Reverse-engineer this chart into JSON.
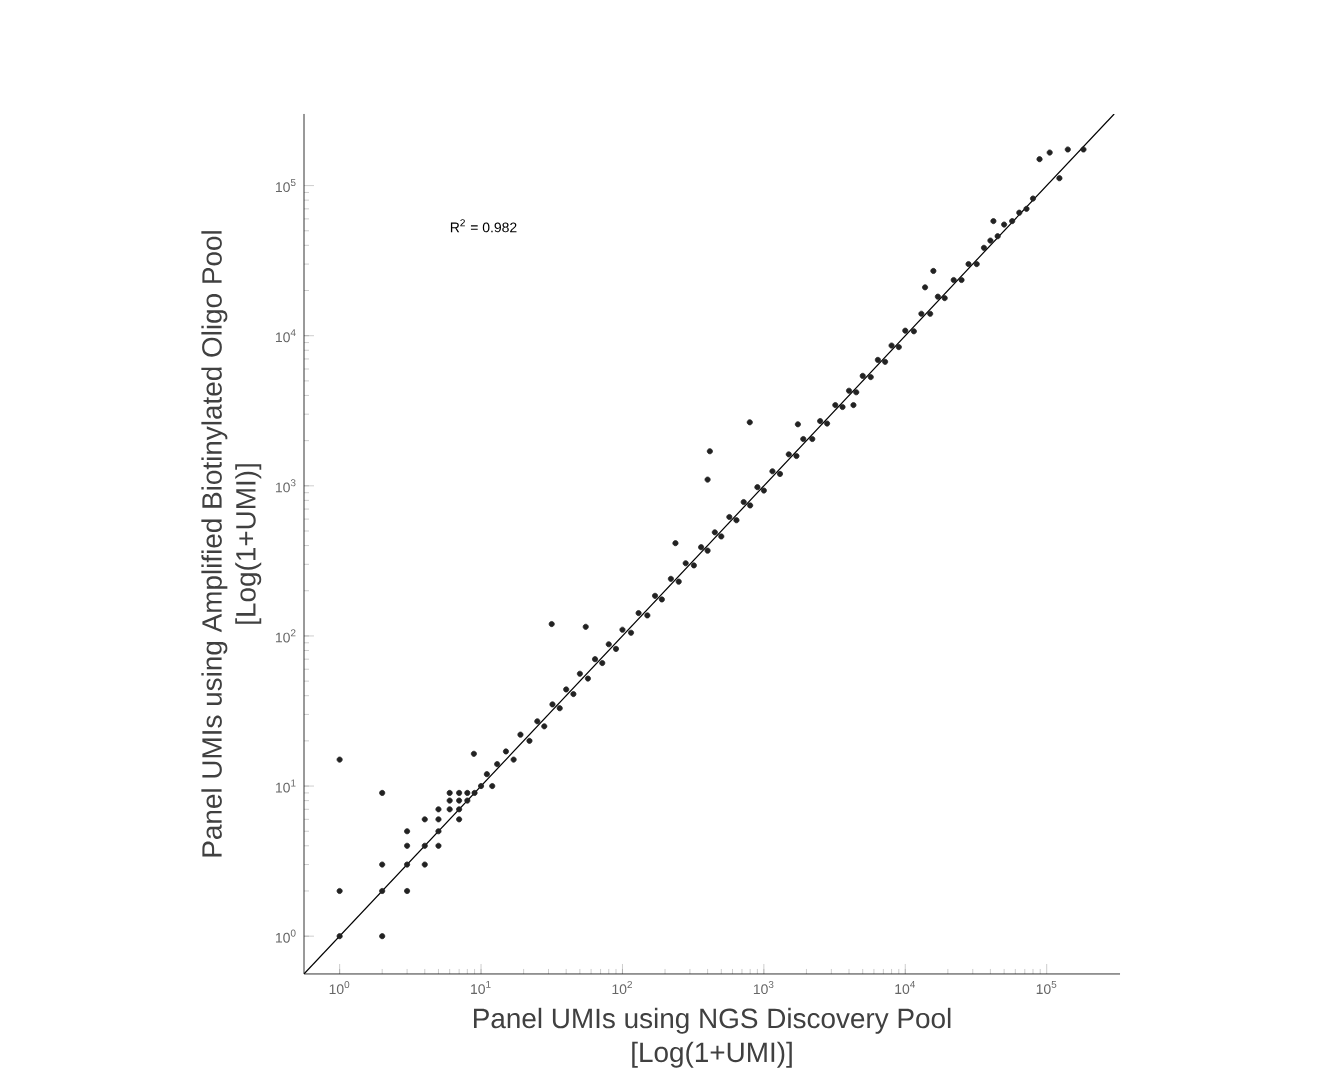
{
  "chart_data": {
    "type": "scatter",
    "xlabel": "Panel UMIs using NGS Discovery Pool [Log(1+UMI)]",
    "ylabel": "Panel UMIs using Amplified Biotinylated Oligo Pool [Log(1+UMI)]",
    "annotations": [
      "R$^{2}$ = 0.982"
    ],
    "log": "xy",
    "marker": "circle",
    "xlim": [
      0.56,
      330000
    ],
    "ylim": [
      0.56,
      300000
    ],
    "xticks": [
      {
        "value": 1,
        "label": "10$^{0}$"
      },
      {
        "value": 10,
        "label": "10$^{1}$"
      },
      {
        "value": 100,
        "label": "10$^{2}$"
      },
      {
        "value": 1000,
        "label": "10$^{3}$"
      },
      {
        "value": 10000,
        "label": "10$^{4}$"
      },
      {
        "value": 100000,
        "label": "10$^{5}$"
      }
    ],
    "yticks": [
      {
        "value": 1,
        "label": "10$^{0}$"
      },
      {
        "value": 10,
        "label": "10$^{1}$"
      },
      {
        "value": 100,
        "label": "10$^{2}$"
      },
      {
        "value": 1000,
        "label": "10$^{3}$"
      },
      {
        "value": 10000,
        "label": "10$^{4}$"
      },
      {
        "value": 100000,
        "label": "10$^{5}$"
      }
    ],
    "series": [
      {
        "color": "#222222",
        "x": [
          1,
          1,
          1,
          2,
          2,
          2,
          2,
          3,
          3,
          3,
          3,
          4,
          4,
          4,
          5,
          5,
          5,
          5,
          6,
          6,
          6,
          7,
          7,
          7,
          7,
          8,
          8,
          9,
          10,
          8.9,
          31.6,
          55,
          415,
          400,
          795,
          237,
          1740,
          15800,
          13800,
          89000,
          105000,
          141000,
          182000,
          123000,
          4300,
          42000,
          11,
          12,
          13,
          15,
          17,
          19,
          22,
          25,
          28,
          32,
          36,
          40,
          45,
          50,
          57,
          64,
          72,
          80,
          90,
          100,
          115,
          130,
          150,
          170,
          190,
          220,
          250,
          280,
          320,
          360,
          400,
          450,
          500,
          570,
          640,
          720,
          800,
          900,
          1000,
          1150,
          1300,
          1500,
          1700,
          1900,
          2200,
          2500,
          2800,
          3200,
          3600,
          4000,
          4500,
          5000,
          5700,
          6400,
          7200,
          8000,
          9000,
          10000,
          11500,
          13000,
          15000,
          17000,
          19000,
          22000,
          25000,
          28000,
          32000,
          36000,
          40000,
          45000,
          50000,
          57000,
          64000,
          72000,
          80000
        ],
        "values": [
          1,
          2,
          15,
          1,
          2,
          3,
          9,
          2,
          3,
          4,
          5,
          3,
          4,
          6,
          4,
          5,
          6,
          7,
          7,
          8,
          9,
          6,
          7,
          8,
          9,
          8,
          9,
          9,
          10,
          16.4,
          120,
          115,
          1700,
          1100,
          2650,
          415,
          2570,
          27000,
          21000,
          150000,
          166000,
          174000,
          174000,
          112000,
          3450,
          58000,
          12,
          10,
          14,
          17,
          15,
          22,
          20,
          27,
          25,
          35,
          33,
          44,
          41,
          56,
          52,
          70,
          66,
          88,
          82,
          110,
          105,
          142,
          137,
          185,
          175,
          240,
          230,
          305,
          295,
          390,
          370,
          490,
          460,
          620,
          590,
          780,
          740,
          980,
          930,
          1250,
          1200,
          1620,
          1580,
          2050,
          2050,
          2700,
          2600,
          3450,
          3350,
          4300,
          4200,
          5400,
          5300,
          6900,
          6700,
          8600,
          8400,
          10800,
          10700,
          14000,
          14000,
          18200,
          17800,
          23500,
          23500,
          30000,
          30000,
          38500,
          43000,
          46000,
          55000,
          58000,
          66000,
          70000,
          82000
        ]
      },
      {
        "type": "line",
        "color": "#000000",
        "marker": "none",
        "x": [
          0.56,
          300000
        ],
        "values": [
          0.56,
          300000
        ]
      }
    ]
  }
}
